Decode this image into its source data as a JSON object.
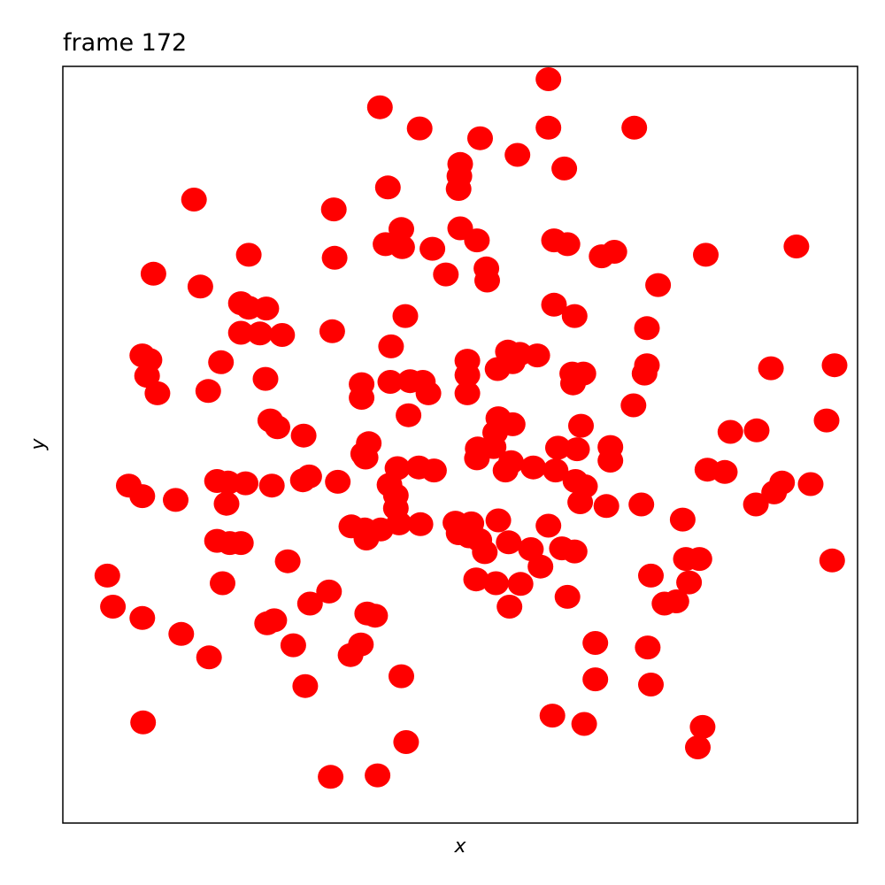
{
  "chart_data": {
    "type": "scatter",
    "title": "frame 172",
    "xlabel": "x",
    "ylabel": "y",
    "xlim": [
      0,
      1
    ],
    "ylim": [
      0,
      1
    ],
    "grid": false,
    "xticks": [],
    "yticks": [],
    "marker_color": "#ff0000",
    "series": [
      {
        "points": [
          [
            0.611,
            0.983
          ],
          [
            0.399,
            0.946
          ],
          [
            0.449,
            0.918
          ],
          [
            0.525,
            0.905
          ],
          [
            0.611,
            0.919
          ],
          [
            0.719,
            0.919
          ],
          [
            0.572,
            0.883
          ],
          [
            0.5,
            0.871
          ],
          [
            0.499,
            0.855
          ],
          [
            0.631,
            0.865
          ],
          [
            0.498,
            0.838
          ],
          [
            0.409,
            0.84
          ],
          [
            0.165,
            0.824
          ],
          [
            0.341,
            0.811
          ],
          [
            0.5,
            0.786
          ],
          [
            0.426,
            0.785
          ],
          [
            0.406,
            0.765
          ],
          [
            0.427,
            0.761
          ],
          [
            0.465,
            0.759
          ],
          [
            0.521,
            0.77
          ],
          [
            0.618,
            0.77
          ],
          [
            0.635,
            0.765
          ],
          [
            0.678,
            0.749
          ],
          [
            0.694,
            0.755
          ],
          [
            0.809,
            0.751
          ],
          [
            0.923,
            0.762
          ],
          [
            0.234,
            0.751
          ],
          [
            0.342,
            0.747
          ],
          [
            0.114,
            0.726
          ],
          [
            0.482,
            0.725
          ],
          [
            0.533,
            0.733
          ],
          [
            0.534,
            0.717
          ],
          [
            0.173,
            0.709
          ],
          [
            0.749,
            0.711
          ],
          [
            0.224,
            0.687
          ],
          [
            0.234,
            0.681
          ],
          [
            0.256,
            0.68
          ],
          [
            0.618,
            0.685
          ],
          [
            0.644,
            0.67
          ],
          [
            0.431,
            0.67
          ],
          [
            0.224,
            0.648
          ],
          [
            0.248,
            0.647
          ],
          [
            0.276,
            0.645
          ],
          [
            0.339,
            0.65
          ],
          [
            0.735,
            0.654
          ],
          [
            0.413,
            0.63
          ],
          [
            0.56,
            0.623
          ],
          [
            0.575,
            0.62
          ],
          [
            0.597,
            0.618
          ],
          [
            0.1,
            0.618
          ],
          [
            0.109,
            0.612
          ],
          [
            0.566,
            0.609
          ],
          [
            0.547,
            0.6
          ],
          [
            0.509,
            0.611
          ],
          [
            0.509,
            0.592
          ],
          [
            0.199,
            0.609
          ],
          [
            0.735,
            0.605
          ],
          [
            0.891,
            0.601
          ],
          [
            0.971,
            0.605
          ],
          [
            0.106,
            0.591
          ],
          [
            0.641,
            0.594
          ],
          [
            0.655,
            0.594
          ],
          [
            0.732,
            0.594
          ],
          [
            0.255,
            0.587
          ],
          [
            0.412,
            0.583
          ],
          [
            0.437,
            0.584
          ],
          [
            0.453,
            0.583
          ],
          [
            0.376,
            0.58
          ],
          [
            0.119,
            0.568
          ],
          [
            0.183,
            0.571
          ],
          [
            0.376,
            0.562
          ],
          [
            0.46,
            0.568
          ],
          [
            0.642,
            0.581
          ],
          [
            0.509,
            0.568
          ],
          [
            0.718,
            0.552
          ],
          [
            0.435,
            0.539
          ],
          [
            0.548,
            0.535
          ],
          [
            0.566,
            0.527
          ],
          [
            0.544,
            0.516
          ],
          [
            0.652,
            0.525
          ],
          [
            0.261,
            0.532
          ],
          [
            0.27,
            0.523
          ],
          [
            0.303,
            0.512
          ],
          [
            0.961,
            0.532
          ],
          [
            0.873,
            0.519
          ],
          [
            0.385,
            0.502
          ],
          [
            0.378,
            0.488
          ],
          [
            0.381,
            0.483
          ],
          [
            0.522,
            0.495
          ],
          [
            0.542,
            0.497
          ],
          [
            0.521,
            0.482
          ],
          [
            0.623,
            0.496
          ],
          [
            0.647,
            0.494
          ],
          [
            0.689,
            0.497
          ],
          [
            0.689,
            0.479
          ],
          [
            0.84,
            0.517
          ],
          [
            0.811,
            0.467
          ],
          [
            0.833,
            0.464
          ],
          [
            0.421,
            0.469
          ],
          [
            0.448,
            0.47
          ],
          [
            0.467,
            0.466
          ],
          [
            0.564,
            0.477
          ],
          [
            0.557,
            0.466
          ],
          [
            0.592,
            0.47
          ],
          [
            0.62,
            0.466
          ],
          [
            0.645,
            0.452
          ],
          [
            0.657,
            0.445
          ],
          [
            0.302,
            0.453
          ],
          [
            0.31,
            0.458
          ],
          [
            0.083,
            0.446
          ],
          [
            0.1,
            0.432
          ],
          [
            0.142,
            0.427
          ],
          [
            0.194,
            0.452
          ],
          [
            0.208,
            0.45
          ],
          [
            0.23,
            0.449
          ],
          [
            0.263,
            0.446
          ],
          [
            0.346,
            0.451
          ],
          [
            0.411,
            0.447
          ],
          [
            0.419,
            0.433
          ],
          [
            0.419,
            0.416
          ],
          [
            0.651,
            0.424
          ],
          [
            0.684,
            0.419
          ],
          [
            0.728,
            0.421
          ],
          [
            0.872,
            0.421
          ],
          [
            0.895,
            0.437
          ],
          [
            0.905,
            0.45
          ],
          [
            0.941,
            0.448
          ],
          [
            0.206,
            0.422
          ],
          [
            0.363,
            0.392
          ],
          [
            0.38,
            0.388
          ],
          [
            0.45,
            0.395
          ],
          [
            0.423,
            0.396
          ],
          [
            0.4,
            0.388
          ],
          [
            0.382,
            0.376
          ],
          [
            0.494,
            0.397
          ],
          [
            0.514,
            0.396
          ],
          [
            0.548,
            0.4
          ],
          [
            0.498,
            0.383
          ],
          [
            0.511,
            0.379
          ],
          [
            0.524,
            0.374
          ],
          [
            0.611,
            0.393
          ],
          [
            0.78,
            0.401
          ],
          [
            0.194,
            0.373
          ],
          [
            0.21,
            0.37
          ],
          [
            0.224,
            0.37
          ],
          [
            0.531,
            0.358
          ],
          [
            0.628,
            0.363
          ],
          [
            0.644,
            0.359
          ],
          [
            0.589,
            0.362
          ],
          [
            0.561,
            0.371
          ],
          [
            0.283,
            0.346
          ],
          [
            0.056,
            0.327
          ],
          [
            0.201,
            0.317
          ],
          [
            0.52,
            0.322
          ],
          [
            0.545,
            0.317
          ],
          [
            0.576,
            0.316
          ],
          [
            0.601,
            0.339
          ],
          [
            0.74,
            0.327
          ],
          [
            0.784,
            0.349
          ],
          [
            0.801,
            0.349
          ],
          [
            0.968,
            0.347
          ],
          [
            0.311,
            0.29
          ],
          [
            0.335,
            0.306
          ],
          [
            0.063,
            0.286
          ],
          [
            0.1,
            0.271
          ],
          [
            0.266,
            0.268
          ],
          [
            0.257,
            0.264
          ],
          [
            0.383,
            0.277
          ],
          [
            0.393,
            0.274
          ],
          [
            0.562,
            0.286
          ],
          [
            0.635,
            0.299
          ],
          [
            0.757,
            0.29
          ],
          [
            0.772,
            0.293
          ],
          [
            0.788,
            0.318
          ],
          [
            0.149,
            0.25
          ],
          [
            0.29,
            0.235
          ],
          [
            0.375,
            0.236
          ],
          [
            0.362,
            0.222
          ],
          [
            0.67,
            0.238
          ],
          [
            0.736,
            0.232
          ],
          [
            0.426,
            0.194
          ],
          [
            0.305,
            0.181
          ],
          [
            0.67,
            0.19
          ],
          [
            0.74,
            0.183
          ],
          [
            0.101,
            0.133
          ],
          [
            0.616,
            0.142
          ],
          [
            0.656,
            0.131
          ],
          [
            0.805,
            0.127
          ],
          [
            0.799,
            0.1
          ],
          [
            0.432,
            0.107
          ],
          [
            0.337,
            0.061
          ],
          [
            0.396,
            0.063
          ],
          [
            0.184,
            0.219
          ]
        ]
      }
    ]
  }
}
